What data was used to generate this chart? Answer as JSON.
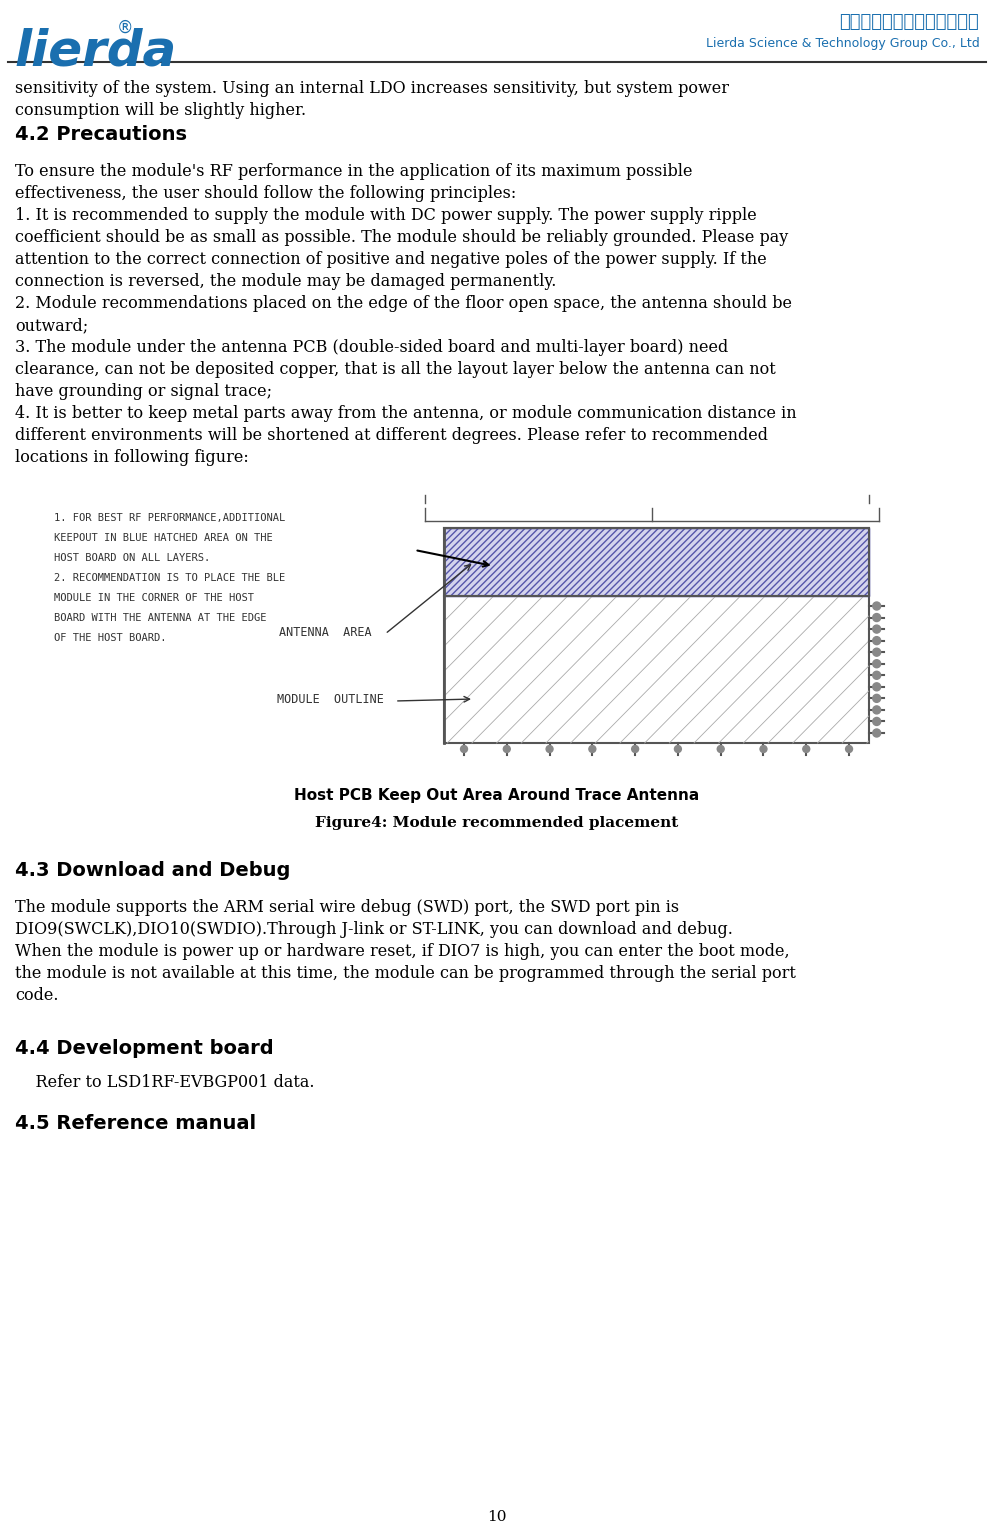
{
  "page_number": "10",
  "bg_color": "#ffffff",
  "text_color": "#000000",
  "header_line_color": "#000000",
  "lierda_blue": "#1a6faf",
  "logo_text": "lierda",
  "logo_r": "®",
  "company_cn": "利尔达科技集团股份有限公司",
  "company_en": "Lierda Science & Technology Group Co., Ltd",
  "opening_text": "sensitivity of the system. Using an internal LDO increases sensitivity, but system power\nconsumption will be slightly higher.",
  "section_42": "4.2 Precautions",
  "para_42": "To ensure the module's RF performance in the application of its maximum possible\neffectiveness, the user should follow the following principles:\n1. It is recommended to supply the module with DC power supply. The power supply ripple\ncoefficient should be as small as possible. The module should be reliably grounded. Please pay\nattention to the correct connection of positive and negative poles of the power supply. If the\nconnection is reversed, the module may be damaged permanently.\n2. Module recommendations placed on the edge of the floor open space, the antenna should be\noutward;\n3. The module under the antenna PCB (double-sided board and multi-layer board) need\nclearance, can not be deposited copper, that is all the layout layer below the antenna can not\nhave grounding or signal trace;\n4. It is better to keep metal parts away from the antenna, or module communication distance in\ndifferent environments will be shortened at different degrees. Please refer to recommended\nlocations in following figure:",
  "figure_caption": "Figure4: Module recommended placement",
  "section_43": "4.3 Download and Debug",
  "para_43": "The module supports the ARM serial wire debug (SWD) port, the SWD port pin is\nDIO9(SWCLK),DIO10(SWDIO).Through J-link or ST-LINK, you can download and debug.\nWhen the module is power up or hardware reset, if DIO7 is high, you can enter the boot mode,\nthe module is not available at this time, the module can be programmed through the serial port\ncode.",
  "section_44": "4.4 Development board",
  "para_44": "    Refer to LSD1RF-EVBGP001 data.",
  "section_45": "4.5 Reference manual"
}
